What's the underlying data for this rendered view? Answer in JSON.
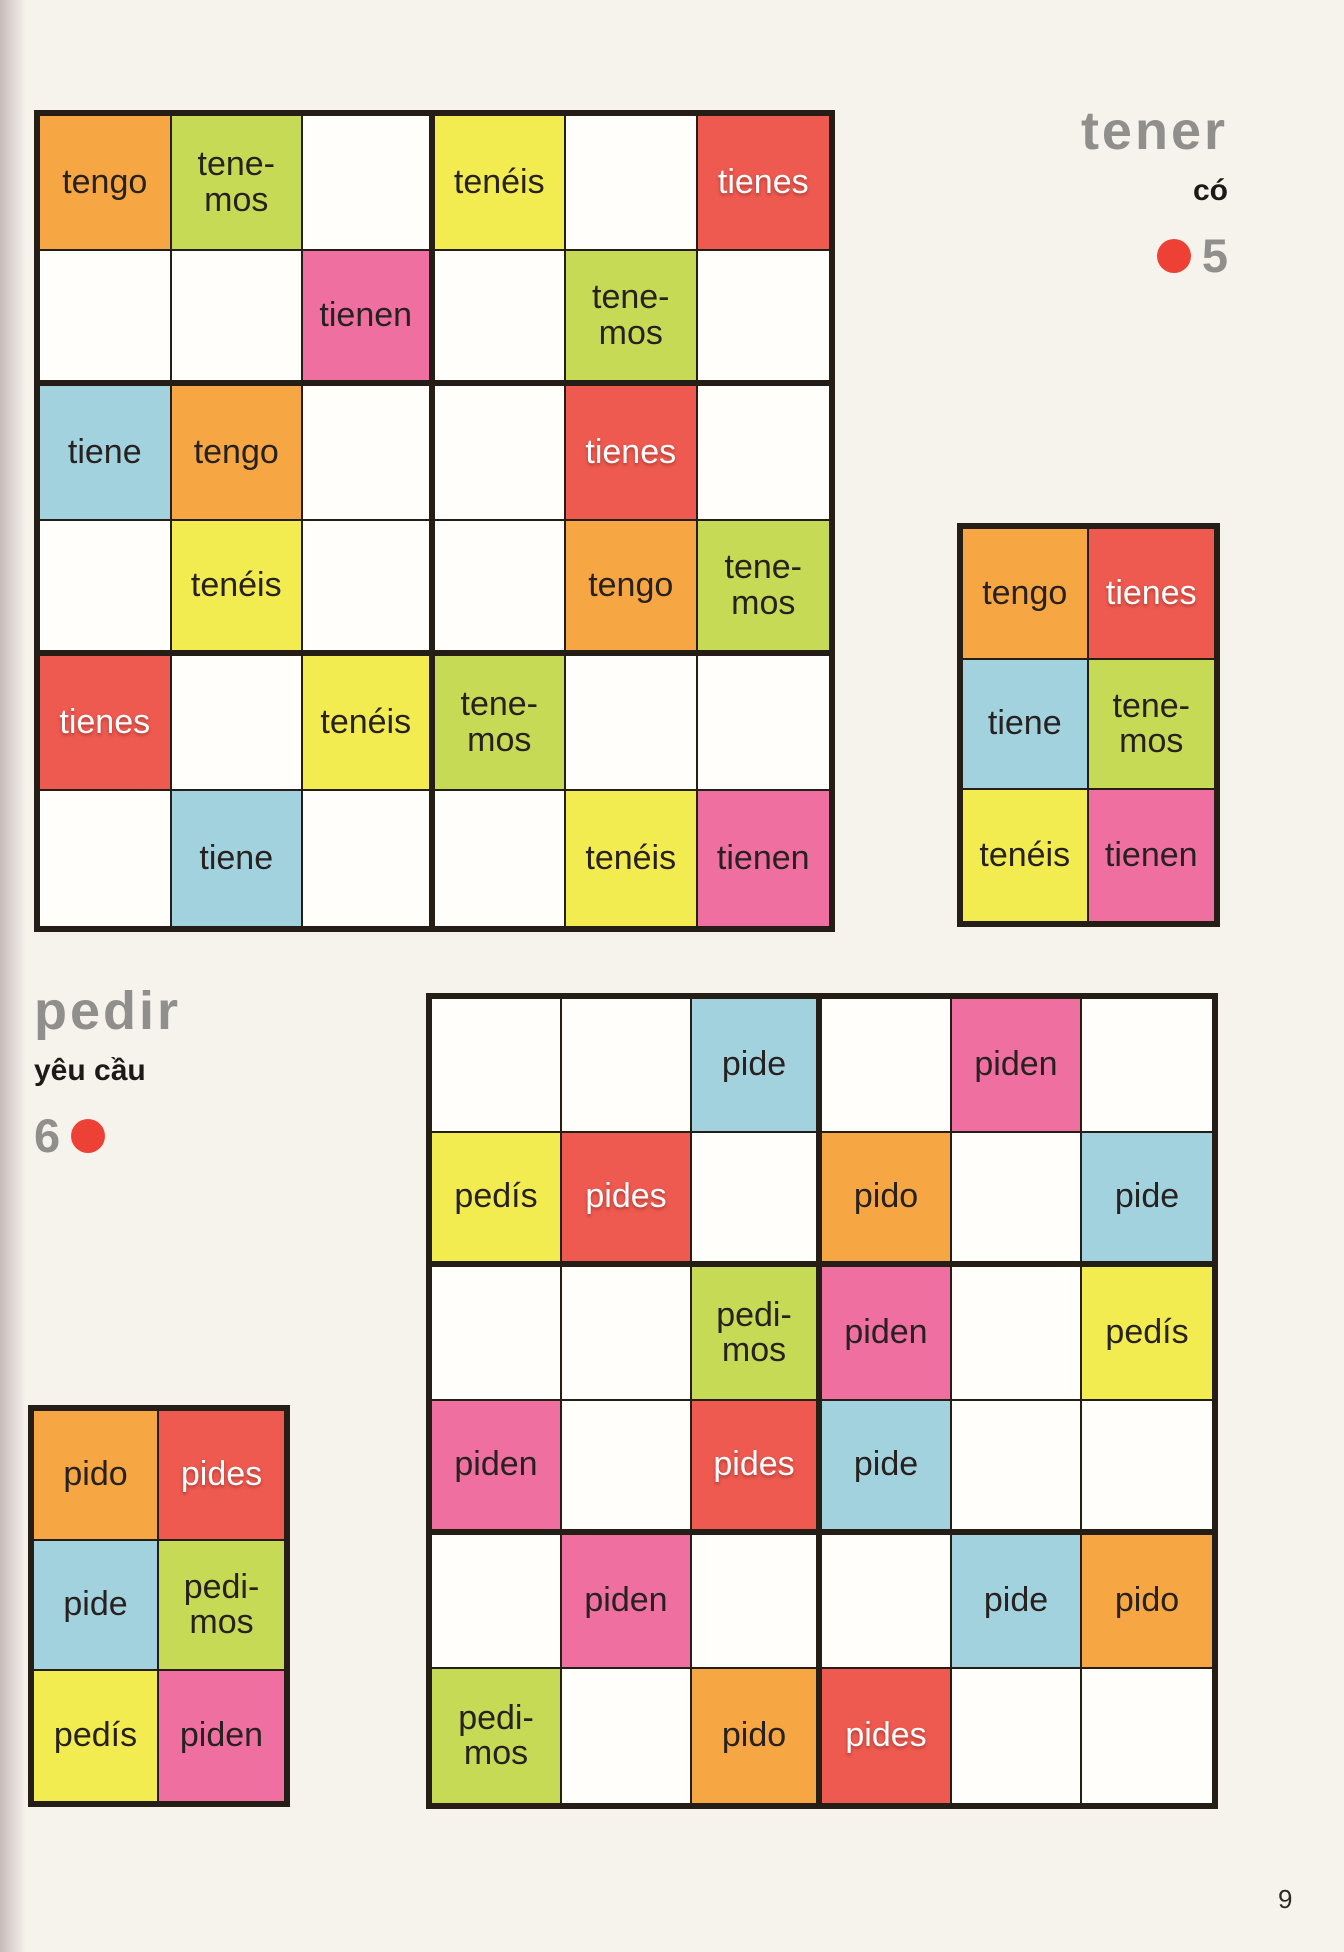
{
  "headers": {
    "tener": {
      "title": "tener",
      "translation": "có",
      "exercise_number": "5"
    },
    "pedir": {
      "title": "pedir",
      "translation": "yêu cầu",
      "exercise_number": "6"
    }
  },
  "page_number": "9",
  "colors": {
    "orange": "#f7a644",
    "red": "#ee5a50",
    "blue": "#a3d2df",
    "green": "#c6da55",
    "yellow": "#f2ec50",
    "pink": "#ef6fa0",
    "white": "#fffefb",
    "border": "#241e16",
    "heading_gray": "#918f8b",
    "dot_red": "#ee4136"
  },
  "grids": {
    "tener_large": {
      "cols": 6,
      "block_cols": 3,
      "block_rows": 2,
      "rows": [
        [
          {
            "label": "tengo",
            "color": "orange"
          },
          {
            "label": "tene-\nmos",
            "color": "green"
          },
          {
            "label": "",
            "color": "white"
          },
          {
            "label": "tenéis",
            "color": "yellow"
          },
          {
            "label": "",
            "color": "white"
          },
          {
            "label": "tienes",
            "color": "red"
          }
        ],
        [
          {
            "label": "",
            "color": "white"
          },
          {
            "label": "",
            "color": "white"
          },
          {
            "label": "tienen",
            "color": "pink"
          },
          {
            "label": "",
            "color": "white"
          },
          {
            "label": "tene-\nmos",
            "color": "green"
          },
          {
            "label": "",
            "color": "white"
          }
        ],
        [
          {
            "label": "tiene",
            "color": "blue"
          },
          {
            "label": "tengo",
            "color": "orange"
          },
          {
            "label": "",
            "color": "white"
          },
          {
            "label": "",
            "color": "white"
          },
          {
            "label": "tienes",
            "color": "red"
          },
          {
            "label": "",
            "color": "white"
          }
        ],
        [
          {
            "label": "",
            "color": "white"
          },
          {
            "label": "tenéis",
            "color": "yellow"
          },
          {
            "label": "",
            "color": "white"
          },
          {
            "label": "",
            "color": "white"
          },
          {
            "label": "tengo",
            "color": "orange"
          },
          {
            "label": "tene-\nmos",
            "color": "green"
          }
        ],
        [
          {
            "label": "tienes",
            "color": "red"
          },
          {
            "label": "",
            "color": "white"
          },
          {
            "label": "tenéis",
            "color": "yellow"
          },
          {
            "label": "tene-\nmos",
            "color": "green"
          },
          {
            "label": "",
            "color": "white"
          },
          {
            "label": "",
            "color": "white"
          }
        ],
        [
          {
            "label": "",
            "color": "white"
          },
          {
            "label": "tiene",
            "color": "blue"
          },
          {
            "label": "",
            "color": "white"
          },
          {
            "label": "",
            "color": "white"
          },
          {
            "label": "tenéis",
            "color": "yellow"
          },
          {
            "label": "tienen",
            "color": "pink"
          }
        ]
      ]
    },
    "tener_small": {
      "cols": 2,
      "rows": [
        [
          {
            "label": "tengo",
            "color": "orange"
          },
          {
            "label": "tienes",
            "color": "red"
          }
        ],
        [
          {
            "label": "tiene",
            "color": "blue"
          },
          {
            "label": "tene-\nmos",
            "color": "green"
          }
        ],
        [
          {
            "label": "tenéis",
            "color": "yellow"
          },
          {
            "label": "tienen",
            "color": "pink"
          }
        ]
      ]
    },
    "pedir_large": {
      "cols": 6,
      "block_cols": 3,
      "block_rows": 2,
      "rows": [
        [
          {
            "label": "",
            "color": "white"
          },
          {
            "label": "",
            "color": "white"
          },
          {
            "label": "pide",
            "color": "blue"
          },
          {
            "label": "",
            "color": "white"
          },
          {
            "label": "piden",
            "color": "pink"
          },
          {
            "label": "",
            "color": "white"
          }
        ],
        [
          {
            "label": "pedís",
            "color": "yellow"
          },
          {
            "label": "pides",
            "color": "red"
          },
          {
            "label": "",
            "color": "white"
          },
          {
            "label": "pido",
            "color": "orange"
          },
          {
            "label": "",
            "color": "white"
          },
          {
            "label": "pide",
            "color": "blue"
          }
        ],
        [
          {
            "label": "",
            "color": "white"
          },
          {
            "label": "",
            "color": "white"
          },
          {
            "label": "pedi-\nmos",
            "color": "green"
          },
          {
            "label": "piden",
            "color": "pink"
          },
          {
            "label": "",
            "color": "white"
          },
          {
            "label": "pedís",
            "color": "yellow"
          }
        ],
        [
          {
            "label": "piden",
            "color": "pink"
          },
          {
            "label": "",
            "color": "white"
          },
          {
            "label": "pides",
            "color": "red"
          },
          {
            "label": "pide",
            "color": "blue"
          },
          {
            "label": "",
            "color": "white"
          },
          {
            "label": "",
            "color": "white"
          }
        ],
        [
          {
            "label": "",
            "color": "white"
          },
          {
            "label": "piden",
            "color": "pink"
          },
          {
            "label": "",
            "color": "white"
          },
          {
            "label": "",
            "color": "white"
          },
          {
            "label": "pide",
            "color": "blue"
          },
          {
            "label": "pido",
            "color": "orange"
          }
        ],
        [
          {
            "label": "pedi-\nmos",
            "color": "green"
          },
          {
            "label": "",
            "color": "white"
          },
          {
            "label": "pido",
            "color": "orange"
          },
          {
            "label": "pides",
            "color": "red"
          },
          {
            "label": "",
            "color": "white"
          },
          {
            "label": "",
            "color": "white"
          }
        ]
      ]
    },
    "pedir_small": {
      "cols": 2,
      "rows": [
        [
          {
            "label": "pido",
            "color": "orange"
          },
          {
            "label": "pides",
            "color": "red"
          }
        ],
        [
          {
            "label": "pide",
            "color": "blue"
          },
          {
            "label": "pedi-\nmos",
            "color": "green"
          }
        ],
        [
          {
            "label": "pedís",
            "color": "yellow"
          },
          {
            "label": "piden",
            "color": "pink"
          }
        ]
      ]
    }
  }
}
